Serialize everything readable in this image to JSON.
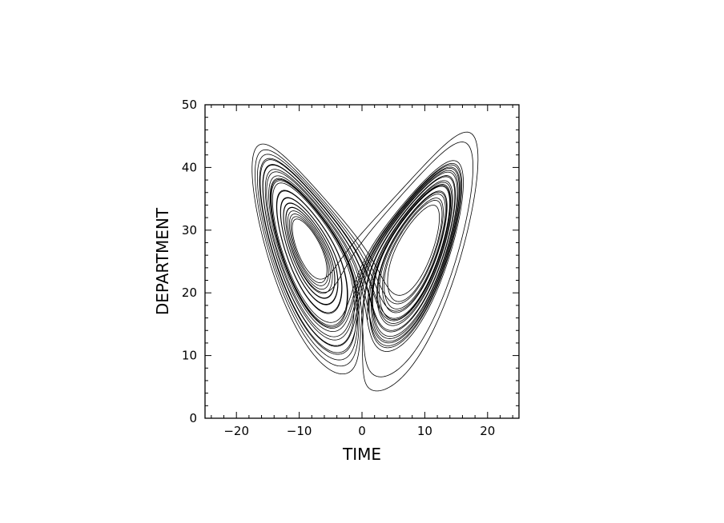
{
  "chart_data": {
    "type": "line",
    "title": "",
    "xlabel": "TIME",
    "ylabel": "DEPARTMENT",
    "xlim": [
      -25,
      25
    ],
    "ylim": [
      0,
      50
    ],
    "x_ticks": [
      -20,
      -10,
      0,
      10,
      20
    ],
    "x_tick_labels": [
      "−20",
      "−10",
      "0",
      "10",
      "20"
    ],
    "y_ticks": [
      0,
      10,
      20,
      30,
      40,
      50
    ],
    "y_tick_labels": [
      "0",
      "10",
      "20",
      "30",
      "40",
      "50"
    ],
    "grid": false,
    "legend": "none",
    "line_color": "#000000",
    "series": [
      {
        "system": "lorenz",
        "params": {
          "sigma": 10,
          "rho": 28,
          "beta": 2.6667
        },
        "initial_state": [
          1,
          1,
          20
        ],
        "time_step": 0.004,
        "steps": 9000,
        "plot_axes": [
          "x",
          "z"
        ]
      }
    ]
  }
}
